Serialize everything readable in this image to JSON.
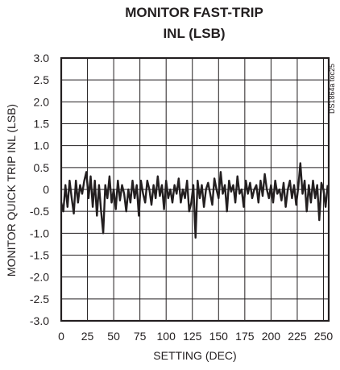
{
  "chart_data": {
    "type": "line",
    "title_lines": [
      "MONITOR FAST-TRIP",
      "INL (LSB)"
    ],
    "xlabel": "SETTING (DEC)",
    "ylabel": "MONITOR QUICK TRIP INL (LSB)",
    "side_label": "DS1864a toc25",
    "xlim": [
      0,
      255
    ],
    "ylim": [
      -3.0,
      3.0
    ],
    "xticks": [
      0,
      25,
      50,
      75,
      100,
      125,
      150,
      175,
      200,
      225,
      250
    ],
    "xtick_labels": [
      "0",
      "25",
      "50",
      "75",
      "100",
      "125",
      "150",
      "175",
      "200",
      "225",
      "250"
    ],
    "yticks": [
      3.0,
      2.5,
      2.0,
      1.5,
      1.0,
      0.5,
      0,
      -0.5,
      -1.0,
      -1.5,
      -2.0,
      -2.5,
      -3.0
    ],
    "ytick_labels": [
      "3.0",
      "2.5",
      "2.0",
      "1.5",
      "1.0",
      "0.5",
      "0",
      "-0.5",
      "-1.0",
      "-1.5",
      "-2.0",
      "-2.5",
      "-3.0"
    ],
    "grid": true,
    "series": [
      {
        "x": [
          0,
          2,
          4,
          6,
          8,
          10,
          12,
          14,
          16,
          18,
          20,
          22,
          24,
          26,
          28,
          30,
          32,
          34,
          36,
          38,
          40,
          42,
          44,
          46,
          48,
          50,
          52,
          54,
          56,
          58,
          60,
          62,
          64,
          66,
          68,
          70,
          72,
          74,
          76,
          78,
          80,
          82,
          84,
          86,
          88,
          90,
          92,
          94,
          96,
          98,
          100,
          102,
          104,
          106,
          108,
          110,
          112,
          114,
          116,
          118,
          120,
          122,
          124,
          126,
          128,
          130,
          132,
          134,
          136,
          138,
          140,
          142,
          144,
          146,
          148,
          150,
          152,
          154,
          156,
          158,
          160,
          162,
          164,
          166,
          168,
          170,
          172,
          174,
          176,
          178,
          180,
          182,
          184,
          186,
          188,
          190,
          192,
          194,
          196,
          198,
          200,
          202,
          204,
          206,
          208,
          210,
          212,
          214,
          216,
          218,
          220,
          222,
          224,
          226,
          228,
          230,
          232,
          234,
          236,
          238,
          240,
          242,
          244,
          246,
          248,
          250,
          252,
          254
        ],
        "y": [
          -0.3,
          -0.5,
          0.1,
          -0.4,
          0.2,
          -0.2,
          -0.55,
          0.2,
          -0.3,
          0.1,
          -0.1,
          0.2,
          0.4,
          -0.2,
          0.3,
          -0.4,
          0.2,
          -0.6,
          0.1,
          -0.5,
          -1.0,
          0.1,
          -0.2,
          0.3,
          -0.3,
          0.0,
          -0.45,
          0.2,
          -0.25,
          0.1,
          -0.1,
          -0.5,
          0.0,
          -0.3,
          0.2,
          -0.2,
          0.1,
          -0.6,
          0.2,
          -0.1,
          -0.3,
          0.2,
          0.0,
          -0.35,
          0.1,
          -0.2,
          0.3,
          -0.15,
          0.1,
          -0.45,
          0.2,
          -0.2,
          0.0,
          -0.3,
          0.1,
          -0.1,
          0.25,
          -0.3,
          0.0,
          -0.2,
          0.2,
          -0.5,
          -0.3,
          0.1,
          -1.1,
          0.2,
          -0.2,
          0.1,
          -0.4,
          0.0,
          0.15,
          -0.1,
          -0.35,
          0.25,
          0.0,
          -0.2,
          0.4,
          -0.1,
          0.1,
          -0.5,
          0.2,
          -0.05,
          0.1,
          -0.3,
          0.3,
          -0.1,
          0.0,
          -0.4,
          0.2,
          -0.1,
          0.15,
          -0.2,
          0.0,
          0.1,
          -0.3,
          0.2,
          -0.15,
          0.35,
          0.0,
          -0.2,
          0.1,
          -0.3,
          0.2,
          -0.1,
          0.0,
          -0.25,
          0.15,
          -0.4,
          0.0,
          0.2,
          -0.2,
          0.1,
          -0.35,
          0.05,
          0.6,
          -0.1,
          0.2,
          -0.5,
          0.1,
          -0.3,
          0.2,
          -0.2,
          0.1,
          -0.7,
          0.15,
          0.0,
          -0.4,
          0.1
        ]
      }
    ]
  }
}
